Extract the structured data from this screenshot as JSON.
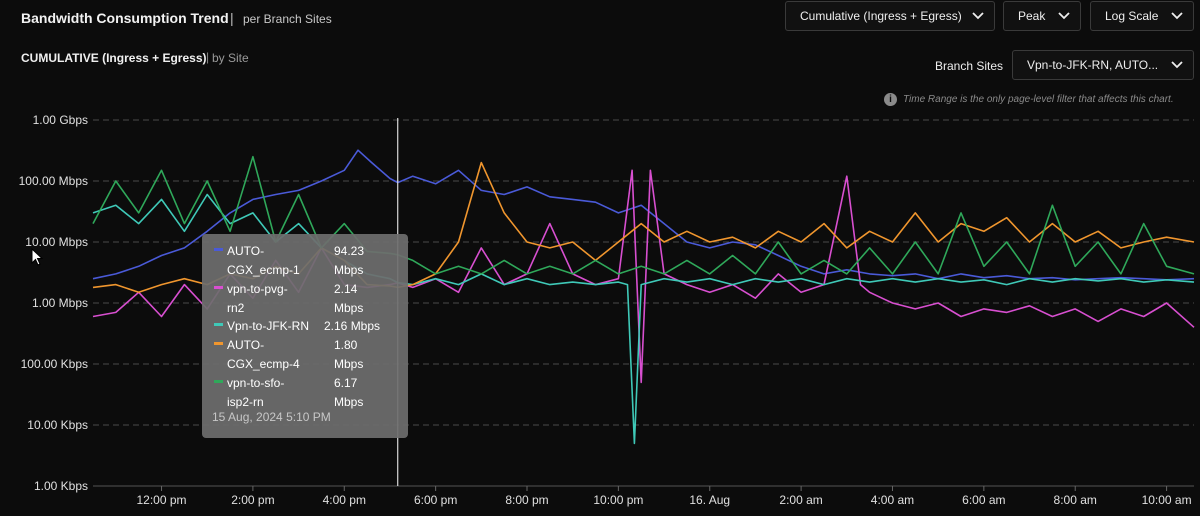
{
  "header": {
    "title": "Bandwidth Consumption Trend",
    "separator": "|",
    "subtitle": "per Branch Sites"
  },
  "subheader": {
    "title": "CUMULATIVE (Ingress + Egress)",
    "separator": "|",
    "by": "by Site"
  },
  "controls": {
    "metric_dropdown": "Cumulative (Ingress + Egress)",
    "agg_dropdown": "Peak",
    "scale_dropdown": "Log Scale",
    "sites_label": "Branch Sites",
    "sites_dropdown": "Vpn-to-JFK-RN, AUTO..."
  },
  "note": "Time Range is the only page-level filter that affects this chart.",
  "tooltip": {
    "items": [
      {
        "name": "AUTO-\nCGX_ecmp-1",
        "value": "94.23\nMbps",
        "color": "#4a5ad8"
      },
      {
        "name": "vpn-to-pvg-\nrn2",
        "value": "2.14\nMbps",
        "color": "#d84fd0"
      },
      {
        "name": "Vpn-to-JFK-RN",
        "value": "2.16 Mbps",
        "color": "#3fc9b8"
      },
      {
        "name": "AUTO-\nCGX_ecmp-4",
        "value": "1.80\nMbps",
        "color": "#f0962e"
      },
      {
        "name": "vpn-to-sfo-\nisp2-rn",
        "value": "6.17\nMbps",
        "color": "#2fa85a"
      }
    ],
    "time": "15 Aug, 2024 5:10 PM"
  },
  "chart_data": {
    "type": "line",
    "y_scale": "log",
    "ylim": [
      1000,
      1000000000
    ],
    "y_ticks": [
      {
        "value": 1000000000,
        "label": "1.00 Gbps"
      },
      {
        "value": 100000000,
        "label": "100.00 Mbps"
      },
      {
        "value": 10000000,
        "label": "10.00 Mbps"
      },
      {
        "value": 1000000,
        "label": "1.00 Mbps"
      },
      {
        "value": 100000,
        "label": "100.00 Kbps"
      },
      {
        "value": 10000,
        "label": "10.00 Kbps"
      },
      {
        "value": 1000,
        "label": "1.00 Kbps"
      }
    ],
    "x_range_hours": [
      10.5,
      34.6
    ],
    "x_ticks": [
      {
        "hour": 12,
        "label": "12:00 pm"
      },
      {
        "hour": 14,
        "label": "2:00 pm"
      },
      {
        "hour": 16,
        "label": "4:00 pm"
      },
      {
        "hour": 18,
        "label": "6:00 pm"
      },
      {
        "hour": 20,
        "label": "8:00 pm"
      },
      {
        "hour": 22,
        "label": "10:00 pm"
      },
      {
        "hour": 24,
        "label": "16. Aug"
      },
      {
        "hour": 26,
        "label": "2:00 am"
      },
      {
        "hour": 28,
        "label": "4:00 am"
      },
      {
        "hour": 30,
        "label": "6:00 am"
      },
      {
        "hour": 32,
        "label": "8:00 am"
      },
      {
        "hour": 34,
        "label": "10:00 am"
      }
    ],
    "crosshair_hour": 17.17,
    "grid": true,
    "series": [
      {
        "name": "AUTO-CGX_ecmp-1",
        "color": "#4a5ad8",
        "points": [
          [
            10.5,
            2500000.0
          ],
          [
            11,
            3000000.0
          ],
          [
            11.5,
            4000000.0
          ],
          [
            12,
            6000000.0
          ],
          [
            12.5,
            8000000.0
          ],
          [
            13,
            15000000.0
          ],
          [
            13.5,
            30000000.0
          ],
          [
            14,
            50000000.0
          ],
          [
            14.5,
            60000000.0
          ],
          [
            15,
            70000000.0
          ],
          [
            15.5,
            100000000.0
          ],
          [
            16,
            150000000.0
          ],
          [
            16.3,
            320000000.0
          ],
          [
            16.6,
            200000000.0
          ],
          [
            17,
            110000000.0
          ],
          [
            17.17,
            94230000.0
          ],
          [
            17.5,
            120000000.0
          ],
          [
            18,
            90000000.0
          ],
          [
            18.5,
            150000000.0
          ],
          [
            19,
            70000000.0
          ],
          [
            19.5,
            60000000.0
          ],
          [
            20,
            80000000.0
          ],
          [
            20.5,
            55000000.0
          ],
          [
            21,
            50000000.0
          ],
          [
            21.5,
            45000000.0
          ],
          [
            22,
            30000000.0
          ],
          [
            22.5,
            40000000.0
          ],
          [
            23,
            20000000.0
          ],
          [
            23.5,
            10000000.0
          ],
          [
            24,
            8000000.0
          ],
          [
            24.5,
            10000000.0
          ],
          [
            25,
            9000000.0
          ],
          [
            25.5,
            6000000.0
          ],
          [
            26,
            4000000.0
          ],
          [
            26.5,
            3000000.0
          ],
          [
            27,
            3500000.0
          ],
          [
            27.5,
            3000000.0
          ],
          [
            28,
            2800000.0
          ],
          [
            28.5,
            3000000.0
          ],
          [
            29,
            2500000.0
          ],
          [
            29.5,
            3000000.0
          ],
          [
            30,
            2600000.0
          ],
          [
            30.5,
            2800000.0
          ],
          [
            31,
            2500000.0
          ],
          [
            31.5,
            2600000.0
          ],
          [
            32,
            2400000.0
          ],
          [
            32.5,
            2500000.0
          ],
          [
            33,
            2600000.0
          ],
          [
            33.5,
            2500000.0
          ],
          [
            34,
            2400000.0
          ],
          [
            34.6,
            2500000.0
          ]
        ]
      },
      {
        "name": "vpn-to-pvg-rn2",
        "color": "#d84fd0",
        "points": [
          [
            10.5,
            600000.0
          ],
          [
            11,
            700000.0
          ],
          [
            11.5,
            1500000.0
          ],
          [
            12,
            600000.0
          ],
          [
            12.5,
            2000000.0
          ],
          [
            13,
            800000.0
          ],
          [
            13.5,
            3000000.0
          ],
          [
            14,
            1200000.0
          ],
          [
            14.5,
            5000000.0
          ],
          [
            15,
            1500000.0
          ],
          [
            15.5,
            8000000.0
          ],
          [
            16,
            2000000.0
          ],
          [
            16.5,
            1800000.0
          ],
          [
            17,
            2000000.0
          ],
          [
            17.17,
            2140000.0
          ],
          [
            17.5,
            1800000.0
          ],
          [
            18,
            2500000.0
          ],
          [
            18.5,
            1500000.0
          ],
          [
            19,
            8000000.0
          ],
          [
            19.5,
            2000000.0
          ],
          [
            20,
            3000000.0
          ],
          [
            20.5,
            20000000.0
          ],
          [
            21,
            3000000.0
          ],
          [
            21.5,
            2000000.0
          ],
          [
            22,
            2500000.0
          ],
          [
            22.3,
            150000000.0
          ],
          [
            22.5,
            50000.0
          ],
          [
            22.7,
            150000000.0
          ],
          [
            23,
            3000000.0
          ],
          [
            23.5,
            2000000.0
          ],
          [
            24,
            1500000.0
          ],
          [
            24.5,
            2000000.0
          ],
          [
            25,
            1200000.0
          ],
          [
            25.5,
            3000000.0
          ],
          [
            26,
            1500000.0
          ],
          [
            26.5,
            2000000.0
          ],
          [
            27,
            120000000.0
          ],
          [
            27.3,
            2000000.0
          ],
          [
            27.5,
            1500000.0
          ],
          [
            28,
            1000000.0
          ],
          [
            28.5,
            800000.0
          ],
          [
            29,
            1000000.0
          ],
          [
            29.5,
            600000.0
          ],
          [
            30,
            800000.0
          ],
          [
            30.5,
            700000.0
          ],
          [
            31,
            900000.0
          ],
          [
            31.5,
            600000.0
          ],
          [
            32,
            800000.0
          ],
          [
            32.5,
            500000.0
          ],
          [
            33,
            800000.0
          ],
          [
            33.5,
            600000.0
          ],
          [
            34,
            1000000.0
          ],
          [
            34.6,
            400000.0
          ]
        ]
      },
      {
        "name": "Vpn-to-JFK-RN",
        "color": "#3fc9b8",
        "points": [
          [
            10.5,
            30000000.0
          ],
          [
            11,
            40000000.0
          ],
          [
            11.5,
            20000000.0
          ],
          [
            12,
            50000000.0
          ],
          [
            12.5,
            15000000.0
          ],
          [
            13,
            60000000.0
          ],
          [
            13.5,
            20000000.0
          ],
          [
            14,
            30000000.0
          ],
          [
            14.5,
            10000000.0
          ],
          [
            15,
            20000000.0
          ],
          [
            15.5,
            8000000.0
          ],
          [
            16,
            5000000.0
          ],
          [
            16.5,
            3000000.0
          ],
          [
            17,
            2500000.0
          ],
          [
            17.17,
            2160000.0
          ],
          [
            17.5,
            2000000.0
          ],
          [
            18,
            2500000.0
          ],
          [
            18.5,
            2000000.0
          ],
          [
            19,
            3000000.0
          ],
          [
            19.5,
            2000000.0
          ],
          [
            20,
            2500000.0
          ],
          [
            20.5,
            2000000.0
          ],
          [
            21,
            2200000.0
          ],
          [
            21.5,
            2000000.0
          ],
          [
            22,
            2200000.0
          ],
          [
            22.2,
            2000000.0
          ],
          [
            22.35,
            5000.0
          ],
          [
            22.5,
            2000000.0
          ],
          [
            23,
            2500000.0
          ],
          [
            23.5,
            2200000.0
          ],
          [
            24,
            2500000.0
          ],
          [
            24.5,
            2000000.0
          ],
          [
            25,
            2500000.0
          ],
          [
            25.5,
            2200000.0
          ],
          [
            26,
            2500000.0
          ],
          [
            26.5,
            2000000.0
          ],
          [
            27,
            2500000.0
          ],
          [
            27.5,
            2200000.0
          ],
          [
            28,
            2500000.0
          ],
          [
            28.5,
            2200000.0
          ],
          [
            29,
            2500000.0
          ],
          [
            29.5,
            2200000.0
          ],
          [
            30,
            2400000.0
          ],
          [
            30.5,
            2000000.0
          ],
          [
            31,
            2500000.0
          ],
          [
            31.5,
            2200000.0
          ],
          [
            32,
            2500000.0
          ],
          [
            32.5,
            2300000.0
          ],
          [
            33,
            2500000.0
          ],
          [
            33.5,
            2200000.0
          ],
          [
            34,
            2400000.0
          ],
          [
            34.6,
            2200000.0
          ]
        ]
      },
      {
        "name": "AUTO-CGX_ecmp-4",
        "color": "#f0962e",
        "points": [
          [
            10.5,
            1800000.0
          ],
          [
            11,
            2000000.0
          ],
          [
            11.5,
            1500000.0
          ],
          [
            12,
            2000000.0
          ],
          [
            12.5,
            2500000.0
          ],
          [
            13,
            2000000.0
          ],
          [
            13.5,
            3000000.0
          ],
          [
            14,
            2500000.0
          ],
          [
            14.5,
            4000000.0
          ],
          [
            15,
            3000000.0
          ],
          [
            15.5,
            8000000.0
          ],
          [
            16,
            5000000.0
          ],
          [
            16.5,
            2000000.0
          ],
          [
            17,
            1900000.0
          ],
          [
            17.17,
            1800000.0
          ],
          [
            17.5,
            2000000.0
          ],
          [
            18,
            3000000.0
          ],
          [
            18.5,
            10000000.0
          ],
          [
            19,
            200000000.0
          ],
          [
            19.5,
            30000000.0
          ],
          [
            20,
            10000000.0
          ],
          [
            20.5,
            8000000.0
          ],
          [
            21,
            10000000.0
          ],
          [
            21.5,
            5000000.0
          ],
          [
            22,
            10000000.0
          ],
          [
            22.5,
            20000000.0
          ],
          [
            23,
            10000000.0
          ],
          [
            23.5,
            15000000.0
          ],
          [
            24,
            10000000.0
          ],
          [
            24.5,
            12000000.0
          ],
          [
            25,
            8000000.0
          ],
          [
            25.5,
            15000000.0
          ],
          [
            26,
            10000000.0
          ],
          [
            26.5,
            20000000.0
          ],
          [
            27,
            8000000.0
          ],
          [
            27.5,
            15000000.0
          ],
          [
            28,
            10000000.0
          ],
          [
            28.5,
            30000000.0
          ],
          [
            29,
            10000000.0
          ],
          [
            29.5,
            20000000.0
          ],
          [
            30,
            15000000.0
          ],
          [
            30.5,
            25000000.0
          ],
          [
            31,
            10000000.0
          ],
          [
            31.5,
            20000000.0
          ],
          [
            32,
            10000000.0
          ],
          [
            32.5,
            15000000.0
          ],
          [
            33,
            8000000.0
          ],
          [
            33.5,
            10000000.0
          ],
          [
            34,
            12000000.0
          ],
          [
            34.6,
            10000000.0
          ]
        ]
      },
      {
        "name": "vpn-to-sfo-isp2-rn",
        "color": "#2fa85a",
        "points": [
          [
            10.5,
            20000000.0
          ],
          [
            11,
            100000000.0
          ],
          [
            11.5,
            30000000.0
          ],
          [
            12,
            150000000.0
          ],
          [
            12.5,
            20000000.0
          ],
          [
            13,
            100000000.0
          ],
          [
            13.5,
            15000000.0
          ],
          [
            14,
            250000000.0
          ],
          [
            14.5,
            10000000.0
          ],
          [
            15,
            60000000.0
          ],
          [
            15.5,
            8000000.0
          ],
          [
            16,
            20000000.0
          ],
          [
            16.5,
            7000000.0
          ],
          [
            17,
            6500000.0
          ],
          [
            17.17,
            6170000.0
          ],
          [
            17.5,
            5000000.0
          ],
          [
            18,
            3000000.0
          ],
          [
            18.5,
            4000000.0
          ],
          [
            19,
            3000000.0
          ],
          [
            19.5,
            5000000.0
          ],
          [
            20,
            3000000.0
          ],
          [
            20.5,
            4000000.0
          ],
          [
            21,
            3000000.0
          ],
          [
            21.5,
            5000000.0
          ],
          [
            22,
            3000000.0
          ],
          [
            22.5,
            4000000.0
          ],
          [
            23,
            3000000.0
          ],
          [
            23.5,
            5000000.0
          ],
          [
            24,
            3000000.0
          ],
          [
            24.5,
            6000000.0
          ],
          [
            25,
            3000000.0
          ],
          [
            25.5,
            10000000.0
          ],
          [
            26,
            3000000.0
          ],
          [
            26.5,
            5000000.0
          ],
          [
            27,
            3000000.0
          ],
          [
            27.5,
            8000000.0
          ],
          [
            28,
            3000000.0
          ],
          [
            28.5,
            10000000.0
          ],
          [
            29,
            3000000.0
          ],
          [
            29.5,
            30000000.0
          ],
          [
            30,
            4000000.0
          ],
          [
            30.5,
            10000000.0
          ],
          [
            31,
            3000000.0
          ],
          [
            31.5,
            40000000.0
          ],
          [
            32,
            4000000.0
          ],
          [
            32.5,
            10000000.0
          ],
          [
            33,
            3000000.0
          ],
          [
            33.5,
            20000000.0
          ],
          [
            34,
            4000000.0
          ],
          [
            34.6,
            3000000.0
          ]
        ]
      }
    ]
  }
}
